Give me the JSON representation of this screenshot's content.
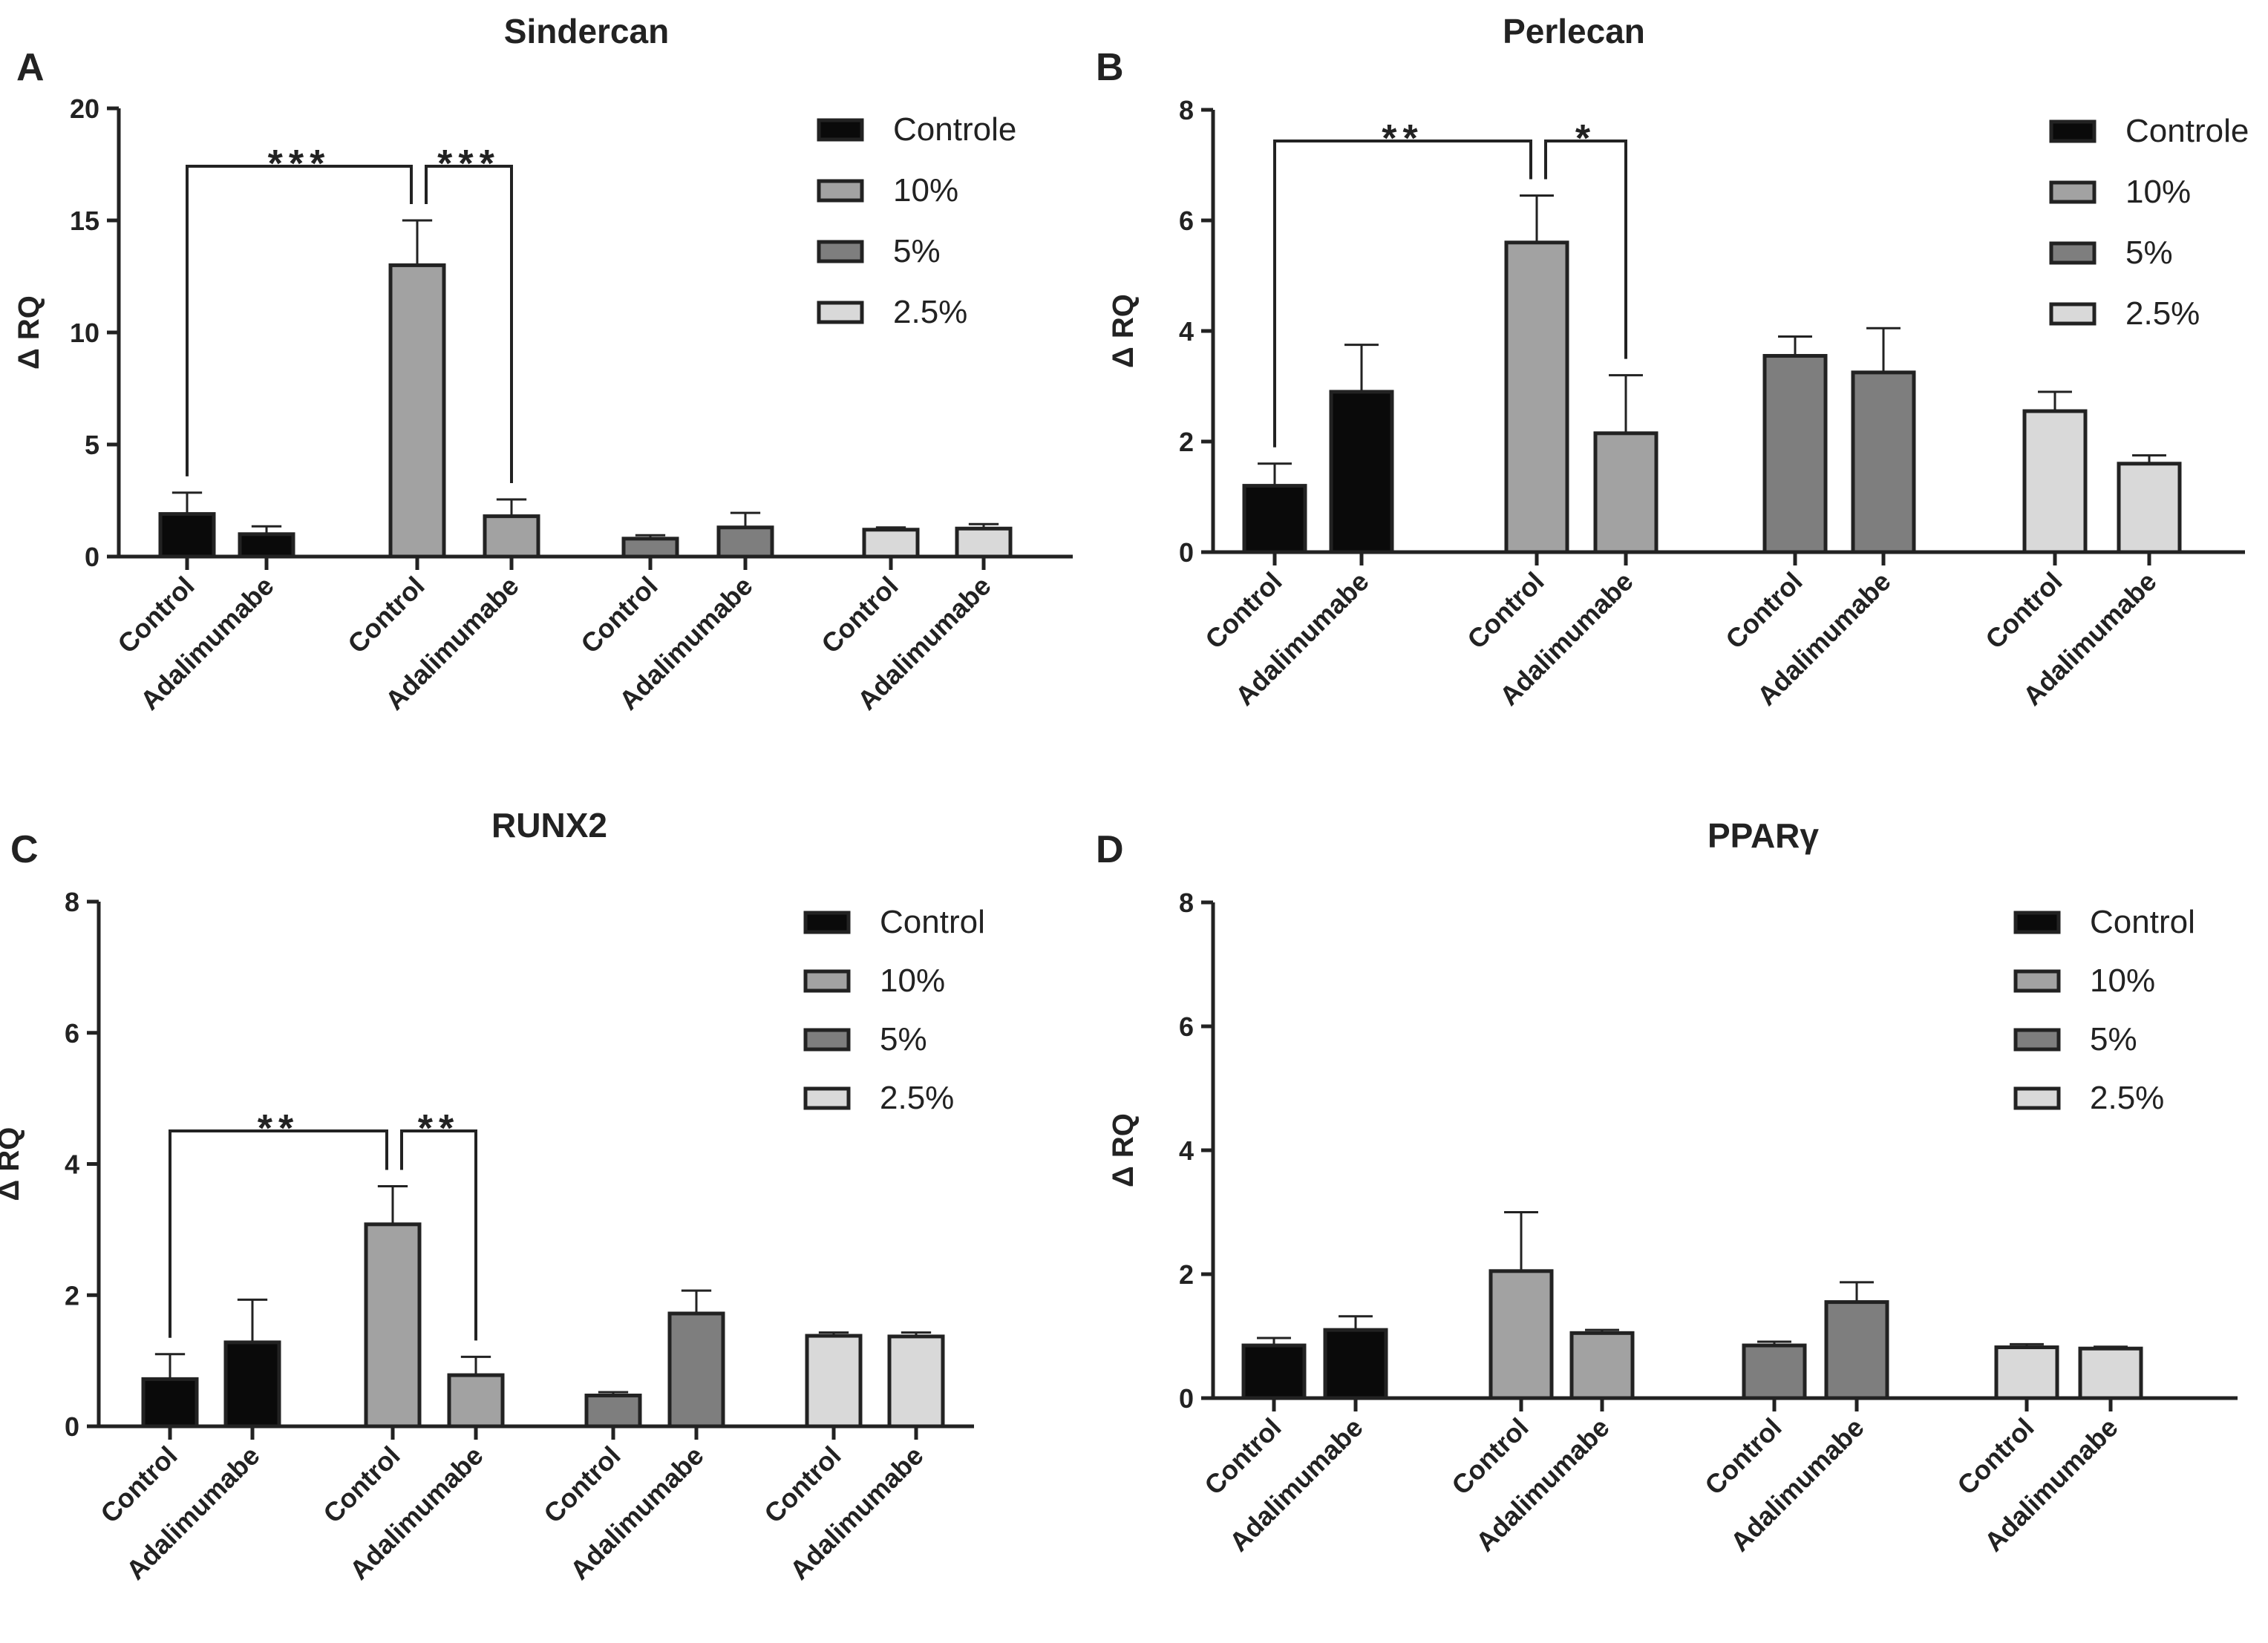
{
  "figure": {
    "background": "#ffffff",
    "text_color": "#222222"
  },
  "group_colors": [
    "#0a0a0a",
    "#a2a2a2",
    "#7e7e7e",
    "#d9d9d9"
  ],
  "chart_data": [
    {
      "panel": "A",
      "type": "bar",
      "title": "Sindercan",
      "ylabel": "Δ RQ",
      "ylim": [
        0,
        20
      ],
      "yticks": [
        0,
        5,
        10,
        15,
        20
      ],
      "categories": [
        "Control",
        "Adalimumabe",
        "Control",
        "Adalimumabe",
        "Control",
        "Adalimumabe",
        "Control",
        "Adalimumabe"
      ],
      "legend": [
        "Controle",
        "10%",
        "5%",
        "2.5%"
      ],
      "groups": [
        0,
        0,
        1,
        1,
        2,
        2,
        3,
        3
      ],
      "values": [
        1.9,
        1.0,
        13.0,
        1.8,
        0.8,
        1.3,
        1.2,
        1.25
      ],
      "errors": [
        0.95,
        0.35,
        2.0,
        0.75,
        0.15,
        0.65,
        0.1,
        0.2
      ],
      "significance": [
        {
          "from": 0,
          "to": 2,
          "label": "***"
        },
        {
          "from": 2,
          "to": 3,
          "label": "***"
        }
      ]
    },
    {
      "panel": "B",
      "type": "bar",
      "title": "Perlecan",
      "ylabel": "Δ RQ",
      "ylim": [
        0,
        8
      ],
      "yticks": [
        0,
        2,
        4,
        6,
        8
      ],
      "categories": [
        "Control",
        "Adalimumabe",
        "Control",
        "Adalimumabe",
        "Control",
        "Adalimumabe",
        "Control",
        "Adalimumabe"
      ],
      "legend": [
        "Controle",
        "10%",
        "5%",
        "2.5%"
      ],
      "groups": [
        0,
        0,
        1,
        1,
        2,
        2,
        3,
        3
      ],
      "values": [
        1.2,
        2.9,
        5.6,
        2.15,
        3.55,
        3.25,
        2.55,
        1.6
      ],
      "errors": [
        0.4,
        0.85,
        0.85,
        1.05,
        0.35,
        0.8,
        0.35,
        0.15
      ],
      "significance": [
        {
          "from": 0,
          "to": 2,
          "label": "**"
        },
        {
          "from": 2,
          "to": 3,
          "label": "*"
        }
      ]
    },
    {
      "panel": "C",
      "type": "bar",
      "title": "RUNX2",
      "ylabel": "Δ RQ",
      "ylim": [
        0,
        8
      ],
      "yticks": [
        0,
        2,
        4,
        6,
        8
      ],
      "categories": [
        "Control",
        "Adalimumabe",
        "Control",
        "Adalimumabe",
        "Control",
        "Adalimumabe",
        "Control",
        "Adalimumabe"
      ],
      "legend": [
        "Control",
        "10%",
        "5%",
        "2.5%"
      ],
      "groups": [
        0,
        0,
        1,
        1,
        2,
        2,
        3,
        3
      ],
      "values": [
        0.72,
        1.28,
        3.08,
        0.78,
        0.47,
        1.72,
        1.38,
        1.37
      ],
      "errors": [
        0.38,
        0.65,
        0.58,
        0.28,
        0.05,
        0.35,
        0.05,
        0.06
      ],
      "significance": [
        {
          "from": 0,
          "to": 2,
          "label": "**"
        },
        {
          "from": 2,
          "to": 3,
          "label": "**"
        }
      ]
    },
    {
      "panel": "D",
      "type": "bar",
      "title": "PPARγ",
      "ylabel": "Δ RQ",
      "ylim": [
        0,
        8
      ],
      "yticks": [
        0,
        2,
        4,
        6,
        8
      ],
      "categories": [
        "Control",
        "Adalimumabe",
        "Control",
        "Adalimumabe",
        "Control",
        "Adalimumabe",
        "Control",
        "Adalimumabe"
      ],
      "legend": [
        "Control",
        "10%",
        "5%",
        "2.5%"
      ],
      "groups": [
        0,
        0,
        1,
        1,
        2,
        2,
        3,
        3
      ],
      "values": [
        0.85,
        1.1,
        2.05,
        1.05,
        0.85,
        1.55,
        0.82,
        0.8
      ],
      "errors": [
        0.12,
        0.22,
        0.95,
        0.05,
        0.06,
        0.32,
        0.05,
        0.03
      ],
      "significance": []
    }
  ]
}
